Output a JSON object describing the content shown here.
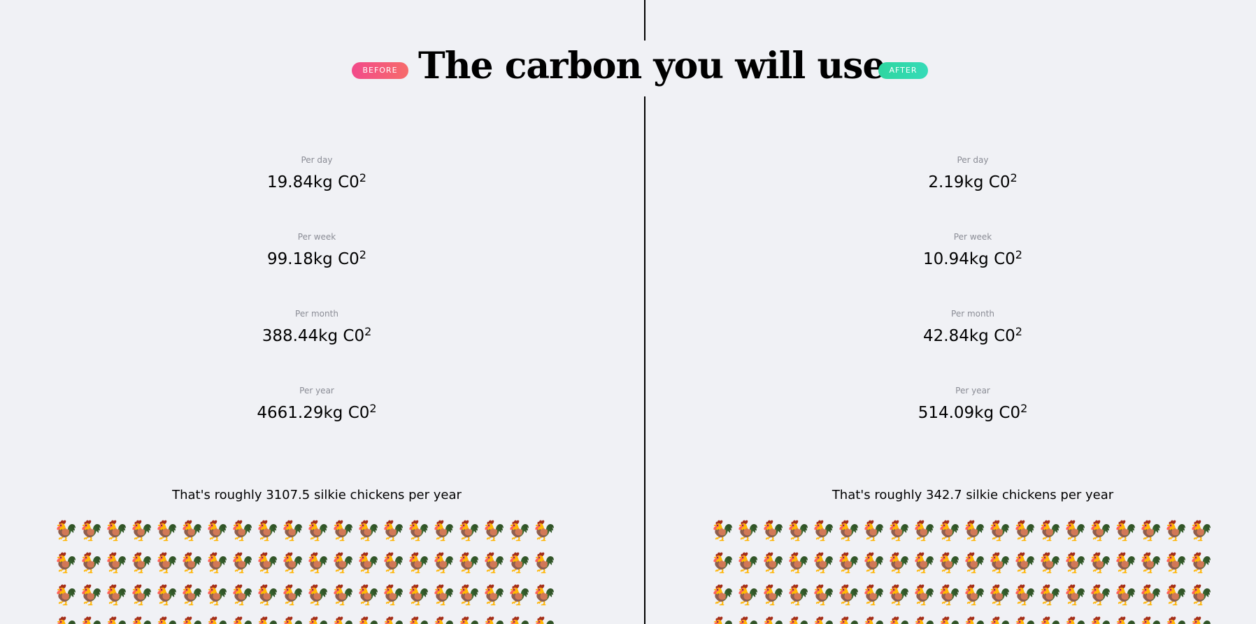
{
  "header": {
    "title": "The carbon you will use...",
    "before_badge": "BEFORE",
    "after_badge": "AFTER"
  },
  "before": {
    "per_day_label": "Per day",
    "per_day_value": "19.84kg C0",
    "per_week_label": "Per week",
    "per_week_value": "99.18kg C0",
    "per_month_label": "Per month",
    "per_month_value": "388.44kg C0",
    "per_year_label": "Per year",
    "per_year_value": "4661.29kg C0",
    "superscript": "2",
    "chickens_text": "That's roughly 3107.5 silkie chickens per year"
  },
  "after": {
    "per_day_label": "Per day",
    "per_day_value": "2.19kg C0",
    "per_week_label": "Per week",
    "per_week_value": "10.94kg C0",
    "per_month_label": "Per month",
    "per_month_value": "42.84kg C0",
    "per_year_label": "Per year",
    "per_year_value": "514.09kg C0",
    "superscript": "2",
    "chickens_text": "That's roughly 342.7 silkie chickens per year"
  },
  "icons": {
    "chicken": "🐓"
  },
  "colors": {
    "background": "#f0f1f5",
    "before_badge": "#f24a8a",
    "after_badge": "#2ed6a0",
    "label_gray": "#8a8c95"
  }
}
